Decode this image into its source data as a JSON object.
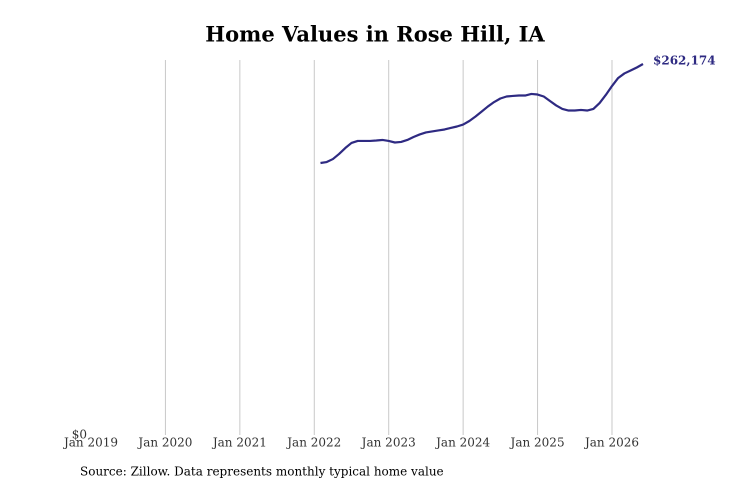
{
  "chart_data": {
    "type": "line",
    "title": "Home Values in Rose Hill, IA",
    "source": "Source: Zillow. Data represents monthly typical home value",
    "color": "#2e2a82",
    "x": [
      "2022-02",
      "2022-03",
      "2022-04",
      "2022-05",
      "2022-06",
      "2022-07",
      "2022-08",
      "2022-09",
      "2022-10",
      "2022-11",
      "2022-12",
      "2023-01",
      "2023-02",
      "2023-03",
      "2023-04",
      "2023-05",
      "2023-06",
      "2023-07",
      "2023-08",
      "2023-09",
      "2023-10",
      "2023-11",
      "2023-12",
      "2024-01",
      "2024-02",
      "2024-03",
      "2024-04",
      "2024-05",
      "2024-06",
      "2024-07",
      "2024-08",
      "2024-09",
      "2024-10",
      "2024-11",
      "2024-12",
      "2025-01",
      "2025-02",
      "2025-03",
      "2025-04",
      "2025-05",
      "2025-06",
      "2025-07",
      "2025-08",
      "2025-09",
      "2025-10",
      "2025-11",
      "2025-12",
      "2026-01",
      "2026-02",
      "2026-03",
      "2026-04",
      "2026-05",
      "2026-06"
    ],
    "values": [
      192200,
      192900,
      195000,
      198600,
      202800,
      206400,
      207800,
      207800,
      207800,
      208100,
      208500,
      207800,
      206700,
      207100,
      208500,
      210600,
      212400,
      213800,
      214500,
      215200,
      215900,
      217000,
      218000,
      219400,
      221900,
      225100,
      228600,
      232200,
      235300,
      237800,
      239200,
      239600,
      239900,
      239900,
      241000,
      240600,
      239200,
      236000,
      232900,
      230400,
      229300,
      229300,
      229700,
      229300,
      230400,
      234600,
      240300,
      246600,
      252300,
      255500,
      257600,
      259700,
      262174
    ],
    "value_labels": [
      null,
      null,
      null,
      null,
      null,
      null,
      null,
      null,
      null,
      null,
      null,
      null,
      null,
      null,
      null,
      null,
      null,
      null,
      null,
      null,
      null,
      null,
      null,
      null,
      null,
      null,
      null,
      null,
      null,
      null,
      null,
      null,
      null,
      null,
      null,
      null,
      null,
      null,
      null,
      null,
      null,
      null,
      null,
      null,
      null,
      null,
      null,
      null,
      null,
      null,
      null,
      null,
      "$262,174"
    ],
    "xlim": [
      "2019-01",
      "2026-06"
    ],
    "xticks": [
      {
        "value": "2019-01",
        "label": "Jan 2019"
      },
      {
        "value": "2020-01",
        "label": "Jan 2020"
      },
      {
        "value": "2021-01",
        "label": "Jan 2021"
      },
      {
        "value": "2022-01",
        "label": "Jan 2022"
      },
      {
        "value": "2023-01",
        "label": "Jan 2023"
      },
      {
        "value": "2024-01",
        "label": "Jan 2024"
      },
      {
        "value": "2025-01",
        "label": "Jan 2025"
      },
      {
        "value": "2026-01",
        "label": "Jan 2026"
      }
    ],
    "ylim": [
      0,
      265000
    ],
    "yticks": [
      {
        "value": 0,
        "label": "$0"
      }
    ],
    "grid": "x"
  }
}
